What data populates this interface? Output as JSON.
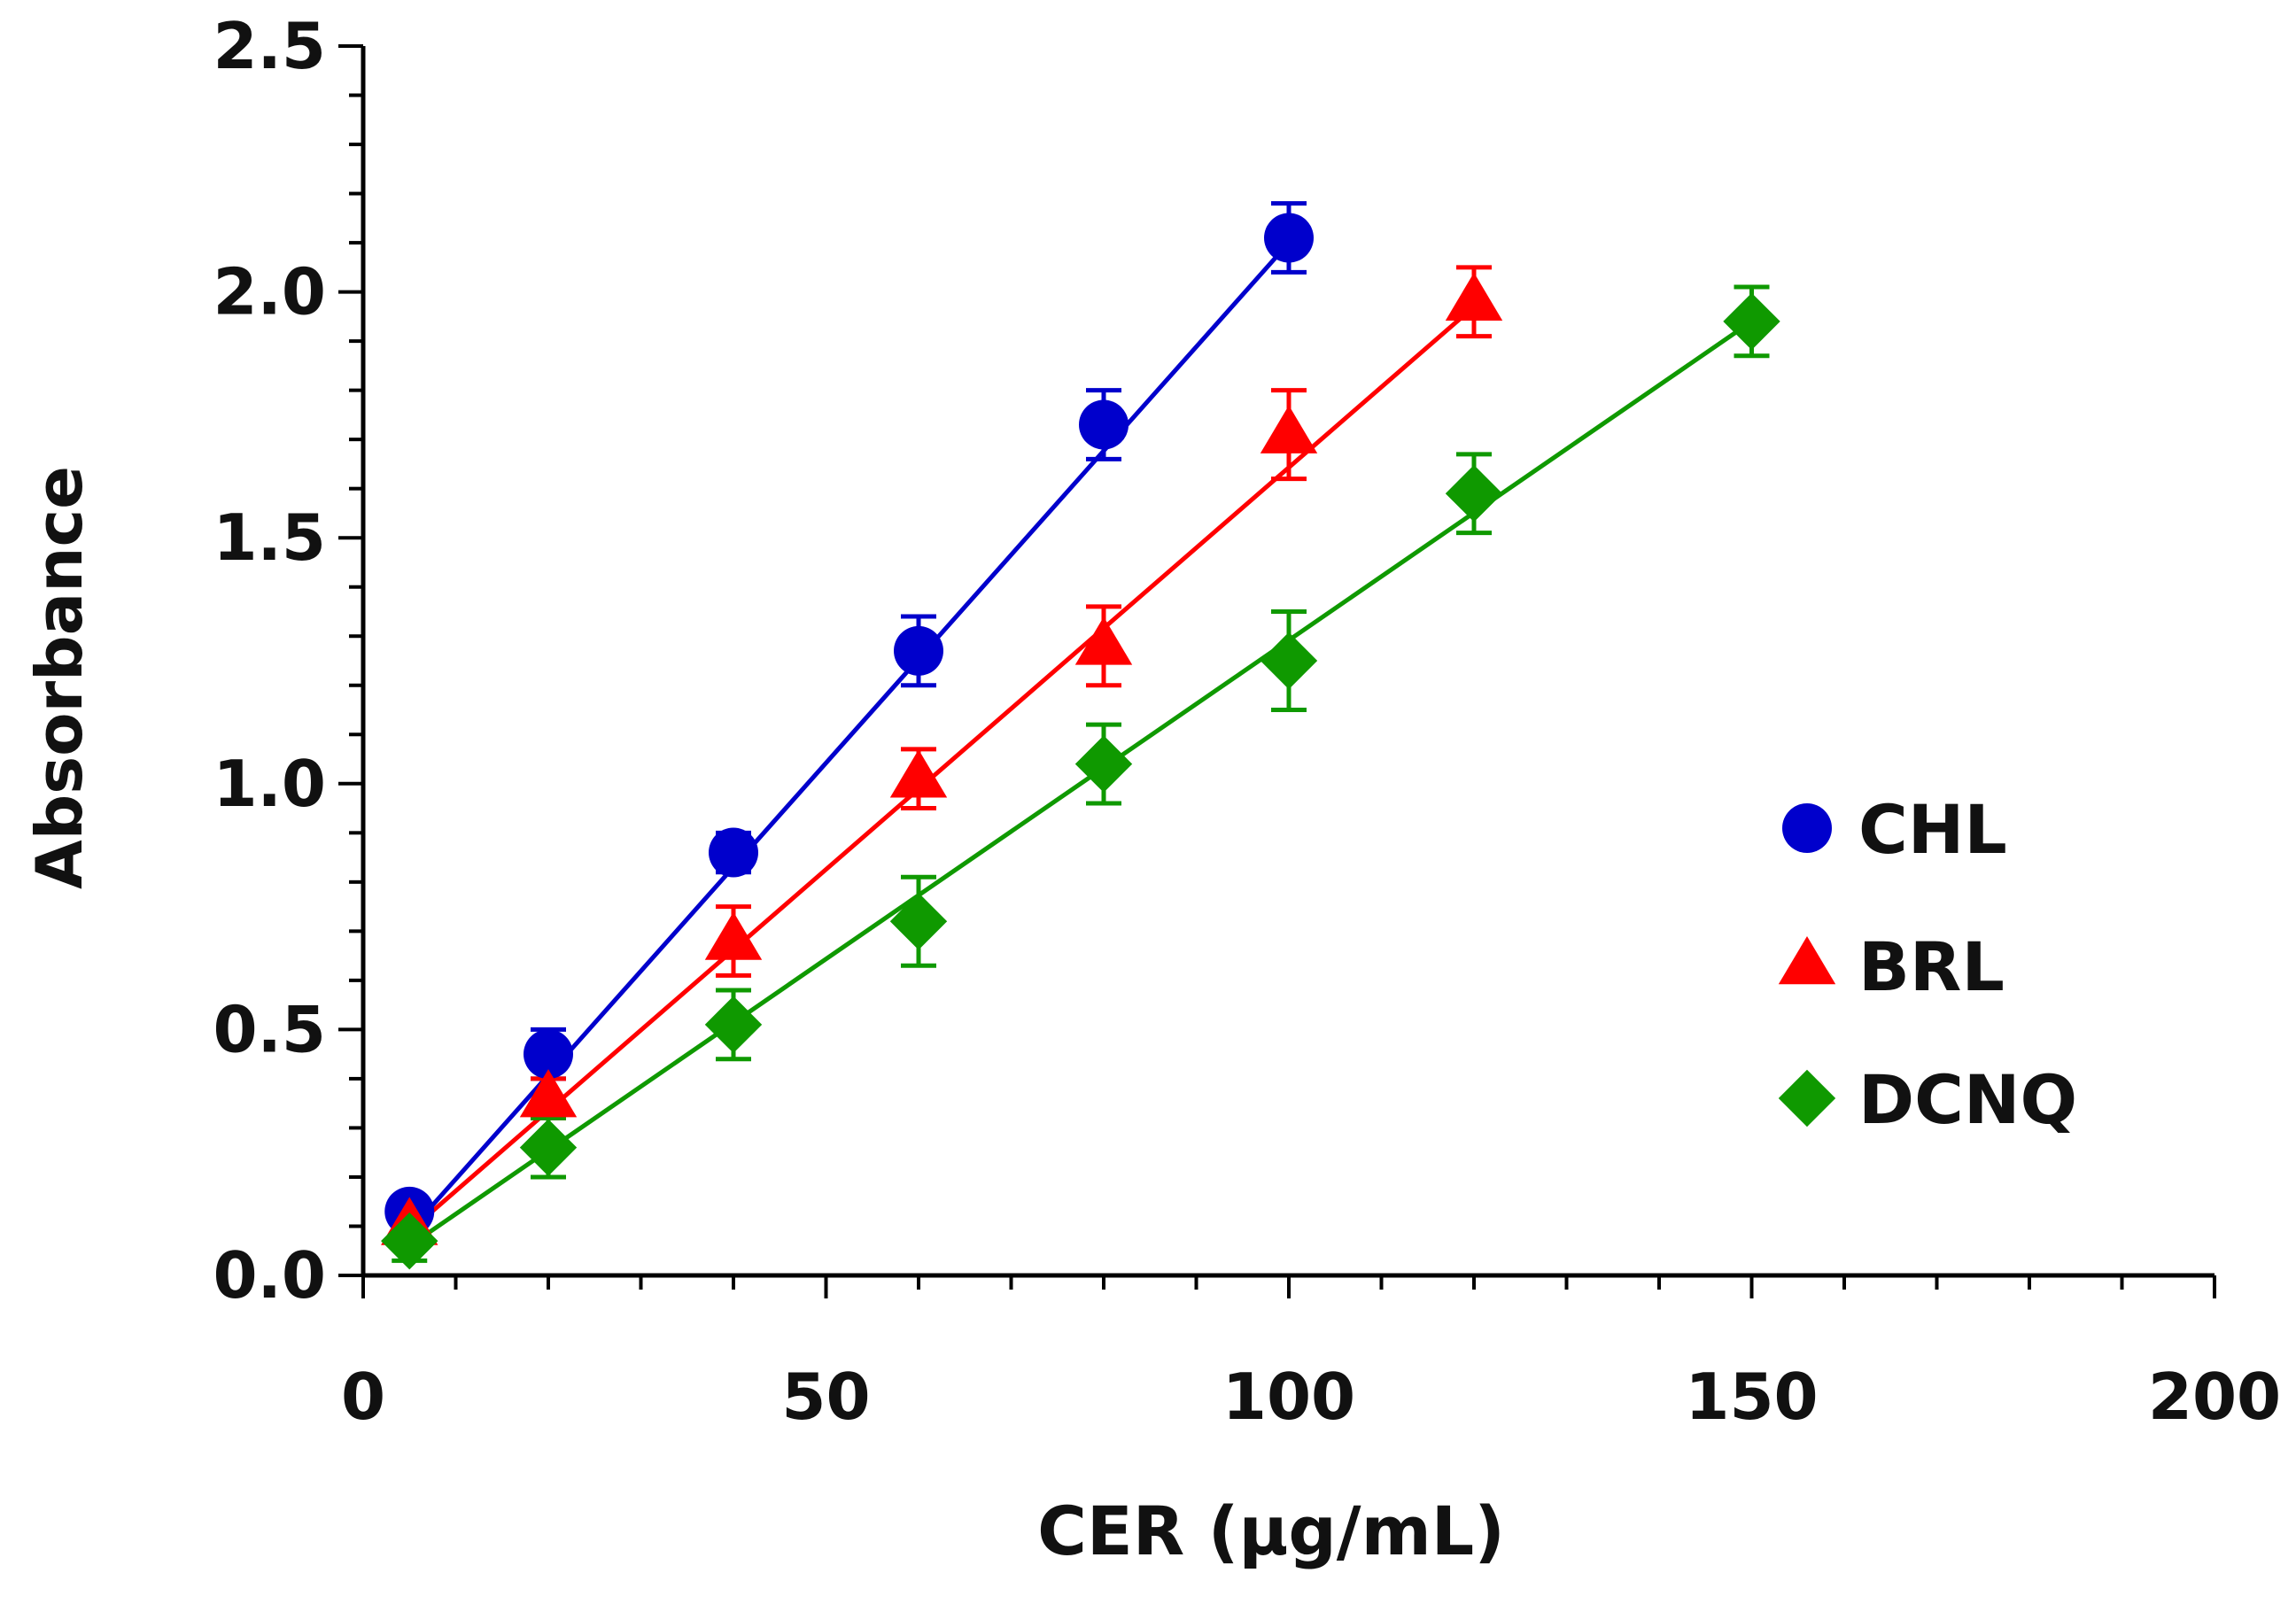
{
  "chart_data": {
    "type": "scatter",
    "title": "",
    "xlabel": "CER (µg/mL)",
    "ylabel": "Absorbance",
    "xlim": [
      0,
      200
    ],
    "ylim": [
      0,
      2.5
    ],
    "x_ticks": [
      0,
      50,
      100,
      150,
      200
    ],
    "y_ticks": [
      0.0,
      0.5,
      1.0,
      1.5,
      2.0,
      2.5
    ],
    "x_tick_labels": [
      "0",
      "50",
      "100",
      "150",
      "200"
    ],
    "y_tick_labels": [
      "0.0",
      "0.5",
      "1.0",
      "1.5",
      "2.0",
      "2.5"
    ],
    "grid": false,
    "legend_position": "right",
    "series": [
      {
        "name": "CHL",
        "color": "#0000cc",
        "marker": "circle",
        "x": [
          5,
          20,
          40,
          60,
          80,
          100
        ],
        "y": [
          0.13,
          0.45,
          0.86,
          1.27,
          1.73,
          2.11
        ],
        "error": [
          0.03,
          0.05,
          0.04,
          0.07,
          0.07,
          0.07
        ],
        "fit_line": {
          "x0": 5,
          "y0": 0.09,
          "x1": 100,
          "y1": 2.1
        }
      },
      {
        "name": "BRL",
        "color": "#ff0000",
        "marker": "triangle",
        "x": [
          5,
          20,
          40,
          60,
          80,
          100,
          120
        ],
        "y": [
          0.1,
          0.36,
          0.68,
          1.01,
          1.28,
          1.71,
          1.98
        ],
        "error": [
          0.03,
          0.04,
          0.07,
          0.06,
          0.08,
          0.09,
          0.07
        ],
        "fit_line": {
          "x0": 5,
          "y0": 0.09,
          "x1": 120,
          "y1": 1.97
        }
      },
      {
        "name": "DCNQ",
        "color": "#0f9900",
        "marker": "diamond",
        "x": [
          5,
          20,
          40,
          60,
          80,
          100,
          120,
          150
        ],
        "y": [
          0.07,
          0.26,
          0.51,
          0.72,
          1.04,
          1.25,
          1.59,
          1.94
        ],
        "error": [
          0.04,
          0.06,
          0.07,
          0.09,
          0.08,
          0.1,
          0.08,
          0.07
        ],
        "fit_line": {
          "x0": 5,
          "y0": 0.06,
          "x1": 150,
          "y1": 1.94
        }
      }
    ]
  }
}
